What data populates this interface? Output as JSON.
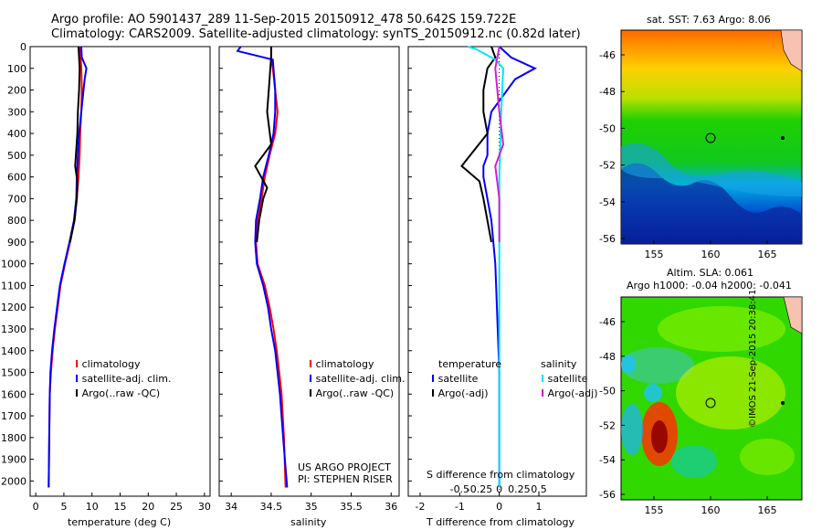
{
  "title_line1": "Argo profile: AO 5901437_289 11-Sep-2015 20150912_478 50.642S 159.722E",
  "title_line2": "Climatology: CARS2009. Satellite-adjusted climatology: synTS_20150912.nc (0.82d later)",
  "project_line1": "US ARGO PROJECT",
  "project_line2": "PI: STEPHEN RISER",
  "credit": "©IMOS 21-Sep-2015 20:38:41",
  "colors": {
    "climatology": "#ff0000",
    "satellite": "#0000ff",
    "argo": "#000000",
    "satellite_s": "#00e5ff",
    "argo_s": "#d020d0"
  },
  "chart_data": [
    {
      "type": "line",
      "xlabel": "temperature (deg C)",
      "ylabel": "",
      "xlim": [
        -1,
        31
      ],
      "ylim": [
        2070,
        0
      ],
      "xticks": [
        0,
        5,
        10,
        15,
        20,
        25,
        30
      ],
      "yticks": [
        0,
        100,
        200,
        300,
        400,
        500,
        600,
        700,
        800,
        900,
        1000,
        1100,
        1200,
        1300,
        1400,
        1500,
        1600,
        1700,
        1800,
        1900,
        2000
      ],
      "legend": [
        "climatology",
        "satellite-adj. clim.",
        "Argo(..raw -QC)"
      ],
      "series": [
        {
          "name": "climatology",
          "color": "#ff0000",
          "x": [
            7.9,
            8.0,
            8.1,
            8.2,
            8.1,
            7.9,
            7.8,
            7.6,
            7.3,
            6.9,
            6.1,
            5.2,
            4.4,
            3.9,
            3.4,
            3.0,
            2.7,
            2.5,
            2.4,
            2.3
          ],
          "y": [
            0,
            50,
            100,
            200,
            300,
            400,
            500,
            600,
            700,
            800,
            900,
            1000,
            1100,
            1200,
            1300,
            1400,
            1500,
            1600,
            1800,
            2030
          ]
        },
        {
          "name": "satellite-adj. clim.",
          "color": "#0000ff",
          "x": [
            8.1,
            8.2,
            9.0,
            8.7,
            8.1,
            7.7,
            7.5,
            7.3,
            7.2,
            6.8,
            6.0,
            5.1,
            4.3,
            3.8,
            3.3,
            2.9,
            2.6,
            2.5,
            2.4,
            2.3
          ],
          "y": [
            0,
            50,
            100,
            150,
            300,
            400,
            500,
            600,
            700,
            800,
            900,
            1000,
            1100,
            1200,
            1300,
            1400,
            1500,
            1600,
            1800,
            2030
          ]
        },
        {
          "name": "Argo(..raw -QC)",
          "color": "#000000",
          "x": [
            7.6,
            7.7,
            7.8,
            7.7,
            7.5,
            7.4,
            7.0,
            7.4,
            7.3,
            6.9,
            6.1
          ],
          "y": [
            0,
            50,
            100,
            200,
            300,
            400,
            550,
            620,
            700,
            800,
            900
          ]
        }
      ]
    },
    {
      "type": "line",
      "xlabel": "salinity",
      "xlim": [
        33.85,
        36.1
      ],
      "ylim": [
        2070,
        0
      ],
      "xticks": [
        34,
        34.5,
        35,
        35.5,
        36
      ],
      "xticklabels": [
        "34",
        "34.5",
        "35",
        "35.5",
        "36"
      ],
      "legend": [
        "climatology",
        "satellite-adj. clim.",
        "Argo(..raw -QC)"
      ],
      "series": [
        {
          "name": "climatology",
          "color": "#ff0000",
          "x": [
            34.5,
            34.5,
            34.52,
            34.55,
            34.58,
            34.55,
            34.48,
            34.42,
            34.38,
            34.33,
            34.31,
            34.33,
            34.42,
            34.48,
            34.53,
            34.57,
            34.6,
            34.63,
            34.66,
            34.68
          ],
          "y": [
            0,
            50,
            100,
            200,
            300,
            400,
            500,
            600,
            700,
            800,
            900,
            1000,
            1100,
            1200,
            1300,
            1400,
            1500,
            1600,
            1800,
            2030
          ]
        },
        {
          "name": "satellite-adj. clim.",
          "color": "#0000ff",
          "x": [
            34.12,
            34.08,
            34.52,
            34.55,
            34.55,
            34.53,
            34.47,
            34.4,
            34.36,
            34.31,
            34.3,
            34.32,
            34.4,
            34.46,
            34.5,
            34.55,
            34.58,
            34.61,
            34.65,
            34.7
          ],
          "y": [
            0,
            20,
            60,
            200,
            300,
            400,
            500,
            600,
            700,
            800,
            900,
            1000,
            1100,
            1200,
            1300,
            1400,
            1500,
            1600,
            1800,
            2030
          ]
        },
        {
          "name": "Argo(..raw -QC)",
          "color": "#000000",
          "x": [
            34.5,
            34.5,
            34.49,
            34.47,
            34.45,
            34.5,
            34.3,
            34.45,
            34.4,
            34.35,
            34.32
          ],
          "y": [
            0,
            50,
            100,
            200,
            300,
            450,
            550,
            650,
            700,
            800,
            900
          ]
        }
      ]
    },
    {
      "type": "line",
      "xlabel": "T difference from climatology",
      "xlabel_top": "S difference from climatology",
      "xlim": [
        -2.3,
        2.2
      ],
      "ylim": [
        2070,
        0
      ],
      "xticks": [
        -2,
        -1,
        0,
        1
      ],
      "xticklabels_top": [
        "-0.5",
        "-0.25",
        "0",
        "0.25",
        "0.5"
      ],
      "legend_headers": [
        "temperature",
        "salinity"
      ],
      "legend": [
        "satellite",
        "Argo(-adj)",
        "satellite",
        "Argo(-adj)"
      ],
      "series": [
        {
          "name": "satellite",
          "color": "#0000ff",
          "x": [
            0.0,
            0.3,
            0.9,
            0.4,
            -0.2,
            -0.3,
            -0.3,
            -0.4,
            -0.4,
            -0.2,
            -0.1,
            0.0,
            0.0
          ],
          "y": [
            0,
            50,
            100,
            150,
            300,
            400,
            500,
            550,
            600,
            800,
            1000,
            1500,
            2030
          ]
        },
        {
          "name": "Argo(-adj)",
          "color": "#000000",
          "x": [
            -0.2,
            -0.1,
            -0.3,
            -0.4,
            -0.4,
            -0.3,
            -0.95,
            -0.5,
            -0.4,
            -0.2
          ],
          "y": [
            0,
            50,
            100,
            200,
            300,
            400,
            550,
            620,
            700,
            900
          ]
        },
        {
          "name": "satellite",
          "color": "#00e5ff",
          "x": [
            -0.8,
            -0.6,
            -0.1,
            0.1,
            0.05,
            0.0,
            0.0,
            0.0
          ],
          "y": [
            0,
            10,
            60,
            100,
            300,
            600,
            1000,
            2030
          ]
        },
        {
          "name": "Argo(-adj)",
          "color": "#d020d0",
          "x": [
            0.0,
            -0.1,
            0.0,
            0.1,
            -0.1,
            0.0,
            0.0
          ],
          "y": [
            0,
            100,
            300,
            450,
            550,
            700,
            900
          ]
        }
      ]
    }
  ],
  "maps": [
    {
      "title": "sat. SST: 7.63 Argo: 8.06",
      "xticks": [
        "155",
        "160",
        "165"
      ],
      "yticks": [
        "-46",
        "-48",
        "-50",
        "-52",
        "-54",
        "-56"
      ]
    },
    {
      "title_line1": "Altim. SLA: 0.061",
      "title_line2": "Argo h1000: -0.04 h2000: -0.041",
      "xticks": [
        "155",
        "160",
        "165"
      ],
      "yticks": [
        "-46",
        "-48",
        "-50",
        "-52",
        "-54",
        "-56"
      ]
    }
  ]
}
